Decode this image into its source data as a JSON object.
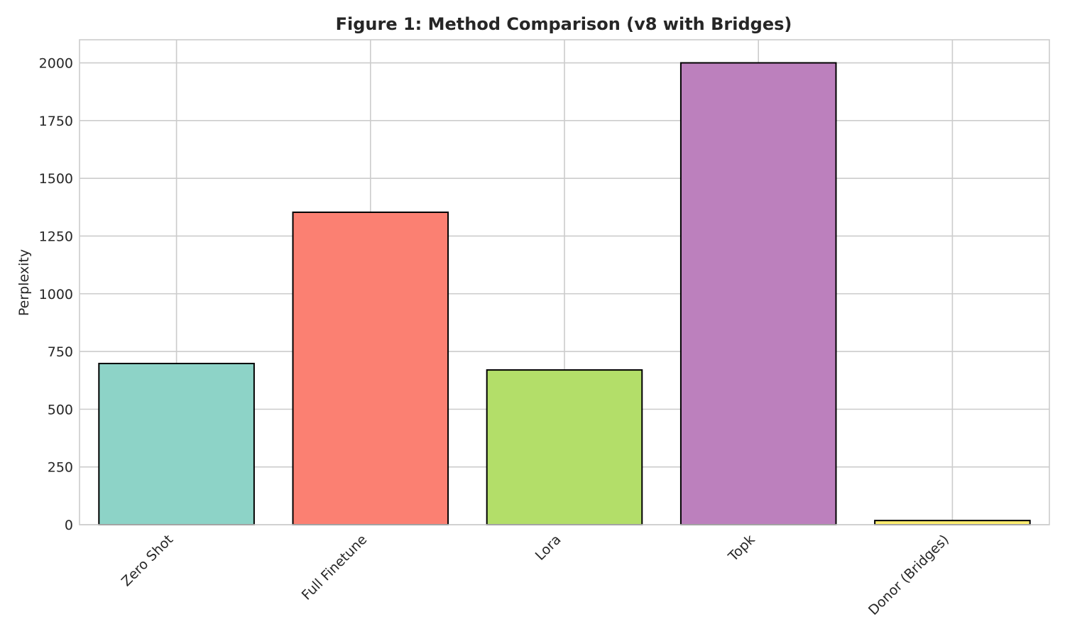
{
  "chart_data": {
    "type": "bar",
    "title": "Figure 1: Method Comparison (v8 with Bridges)",
    "xlabel": "",
    "ylabel": "Perplexity",
    "categories": [
      "Zero Shot",
      "Full Finetune",
      "Lora",
      "Topk",
      "Donor (Bridges)"
    ],
    "values": [
      698,
      1353,
      670,
      2000,
      18
    ],
    "colors": [
      "#8dd3c7",
      "#fb8072",
      "#b3de69",
      "#bc80bd",
      "#ffed6f"
    ],
    "ylim": [
      0,
      2100
    ],
    "yticks": [
      0,
      250,
      500,
      750,
      1000,
      1250,
      1500,
      1750,
      2000
    ],
    "grid": true,
    "legend": "none"
  }
}
